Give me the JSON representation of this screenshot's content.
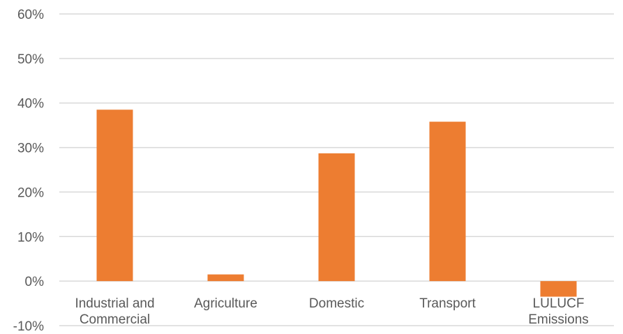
{
  "chart_data": {
    "type": "bar",
    "title": "",
    "xlabel": "",
    "ylabel": "",
    "categories": [
      [
        "Industrial and",
        "Commercial"
      ],
      [
        "Agriculture"
      ],
      [
        "Domestic"
      ],
      [
        "Transport"
      ],
      [
        "LULUCF",
        "Emissions"
      ]
    ],
    "values": [
      38.5,
      1.5,
      28.7,
      35.8,
      -3.5
    ],
    "ylim": [
      -10,
      60
    ],
    "yticks": [
      -10,
      0,
      10,
      20,
      30,
      40,
      50,
      60
    ],
    "ytick_labels": [
      "-10%",
      "0%",
      "10%",
      "20%",
      "30%",
      "40%",
      "50%",
      "60%"
    ],
    "bar_color": "#ed7d31",
    "grid": true,
    "legend": "none"
  }
}
